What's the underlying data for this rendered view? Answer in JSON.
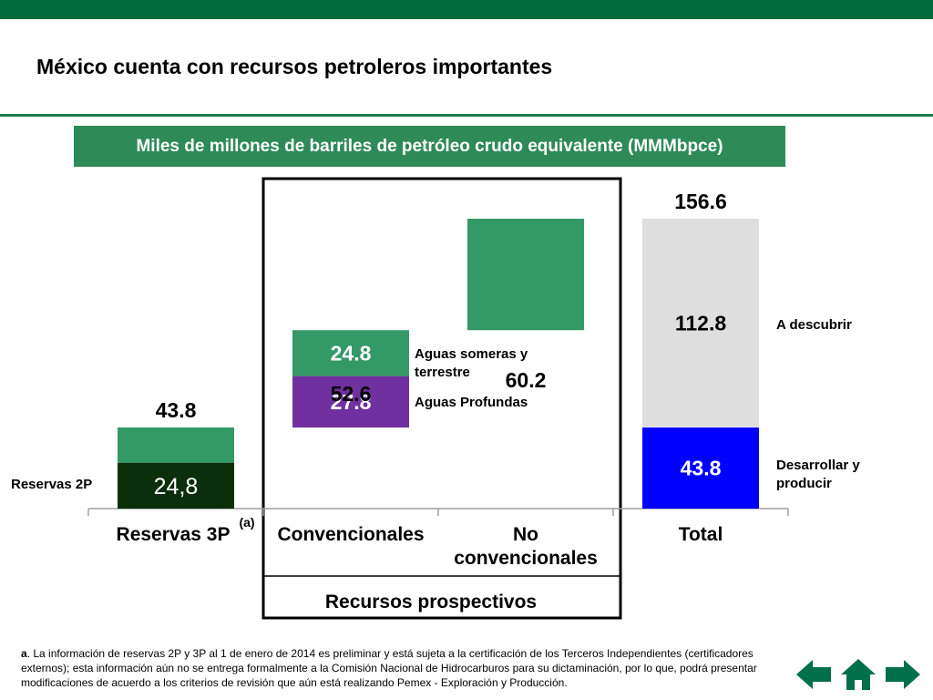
{
  "slide": {
    "title": "México cuenta con recursos petroleros importantes",
    "subtitle": "Miles de millones de barriles de petróleo crudo equivalente (MMMbpce)"
  },
  "colors": {
    "header_green": "#006A3A",
    "banner_green": "#2E8B57",
    "bar_green": "#339966",
    "dark_green": "#0B2E0B",
    "purple": "#7030A0",
    "light_gray": "#DEDEDE",
    "blue": "#0000FF",
    "nav_green": "#00704A"
  },
  "chart_data": {
    "type": "bar",
    "subtype": "waterfall-stacked",
    "unit": "MMMbpce",
    "categories": [
      "Reservas 3P",
      "Convencionales",
      "No convencionales",
      "Total"
    ],
    "category_superscripts": {
      "Reservas 3P": "(a)"
    },
    "group_label": "Recursos prospectivos",
    "group_members": [
      "Convencionales",
      "No convencionales"
    ],
    "totals": [
      {
        "category": "Reservas 3P",
        "label": "43.8",
        "value": 43.8
      },
      {
        "category": "Convencionales",
        "label": "52.6",
        "value": 52.6
      },
      {
        "category": "No convencionales",
        "label": "60.2",
        "value": 60.2
      },
      {
        "category": "Total",
        "label": "156.6",
        "value": 156.6
      }
    ],
    "segments": [
      {
        "category": "Reservas 3P",
        "start": 0,
        "value": 24.8,
        "label": "24,8",
        "color": "#0B2E0B",
        "series": "Reservas 2P"
      },
      {
        "category": "Reservas 3P",
        "start": 24.8,
        "value": 19.0,
        "label": "",
        "color": "#339966"
      },
      {
        "category": "Convencionales",
        "start": 43.8,
        "value": 27.8,
        "label": "27.8",
        "color": "#7030A0",
        "series": "Aguas Profundas"
      },
      {
        "category": "Convencionales",
        "start": 71.6,
        "value": 24.8,
        "label": "24.8",
        "color": "#339966",
        "series": "Aguas someras y terrestre"
      },
      {
        "category": "No convencionales",
        "start": 96.4,
        "value": 60.2,
        "label": "",
        "color": "#339966"
      },
      {
        "category": "Total",
        "start": 0,
        "value": 43.8,
        "label": "43.8",
        "color": "#0000FF",
        "series": "Desarrollar y producir"
      },
      {
        "category": "Total",
        "start": 43.8,
        "value": 112.8,
        "label": "112.8",
        "color": "#DEDEDE",
        "series": "A descubrir"
      }
    ],
    "annotations": [
      "Reservas 2P",
      "Aguas someras y terrestre",
      "Aguas Profundas",
      "A descubrir",
      "Desarrollar y producir"
    ],
    "ylim": [
      0,
      156.6
    ],
    "grid": false,
    "legend": "none"
  },
  "footnote": {
    "marker": "a",
    "text": ". La información de reservas 2P y 3P al 1 de enero de 2014 es preliminar y está sujeta a la certificación de los Terceros Independientes (certificadores externos); esta información aún no se entrega formalmente a la Comisión Nacional de Hidrocarburos para su dictaminación, por lo que, podrá presentar modificaciones de acuerdo a los criterios de revisión que aún está realizando Pemex - Exploración y Producción."
  },
  "nav": {
    "back_icon": "arrow-left-icon",
    "home_icon": "home-icon",
    "next_icon": "arrow-right-icon"
  }
}
